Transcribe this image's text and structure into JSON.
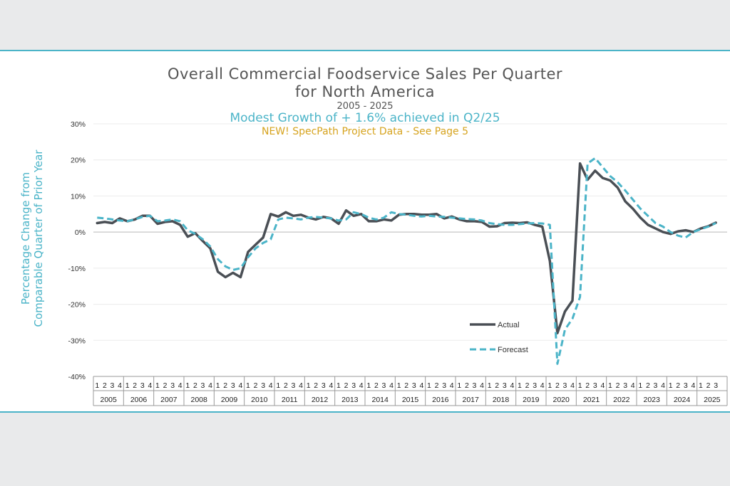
{
  "chart_data": {
    "type": "line",
    "title": "Overall Commercial Foodservice Sales Per Quarter",
    "title_line2": "for North America",
    "subtitle": "2005 - 2025",
    "headline": "Modest Growth of + 1.6% achieved in Q2/25",
    "note": "NEW! SpecPath Project Data - See Page 5",
    "ylabel_line1": "Percentage Change from",
    "ylabel_line2": "Comparable Quarter of Prior Year",
    "ylim": [
      -40,
      30
    ],
    "yticks": [
      30,
      20,
      10,
      0,
      -10,
      -20,
      -30,
      -40
    ],
    "ytick_labels": [
      "30%",
      "20%",
      "10%",
      "0%",
      "-10%",
      "-20%",
      "-30%",
      "-40%"
    ],
    "years": [
      "2005",
      "2006",
      "2007",
      "2008",
      "2009",
      "2010",
      "2011",
      "2012",
      "2013",
      "2014",
      "2015",
      "2016",
      "2017",
      "2018",
      "2019",
      "2020",
      "2021",
      "2022",
      "2023",
      "2024",
      "2025"
    ],
    "quarter_labels": [
      "1",
      "2",
      "3",
      "4"
    ],
    "series": [
      {
        "name": "Actual",
        "color": "#4a4f55",
        "dash": false,
        "values": [
          2.5,
          2.8,
          2.5,
          3.8,
          3.0,
          3.5,
          4.5,
          4.5,
          2.3,
          2.8,
          3.0,
          2.0,
          -1.3,
          -0.3,
          -2.5,
          -4.5,
          -11,
          -12.5,
          -11.3,
          -12.5,
          -5.5,
          -3.5,
          -1.5,
          5.0,
          4.3,
          5.5,
          4.5,
          4.8,
          4.0,
          3.5,
          4.2,
          3.8,
          2.3,
          6.0,
          4.5,
          5.0,
          3.0,
          3.0,
          3.5,
          3.2,
          4.8,
          5.0,
          5.0,
          4.8,
          4.8,
          5.0,
          3.8,
          4.3,
          3.5,
          3.0,
          3.0,
          2.8,
          1.5,
          1.6,
          2.5,
          2.6,
          2.5,
          2.7,
          2.0,
          1.5,
          -8,
          -28,
          -22,
          -19,
          19,
          14.5,
          17,
          15,
          14.3,
          12.3,
          8.5,
          6.5,
          4.0,
          2.0,
          1.0,
          0.0,
          -0.5,
          0.2,
          0.5,
          0.0,
          1.0,
          1.6,
          2.6
        ]
      },
      {
        "name": "Forecast",
        "color": "#4bb4c8",
        "dash": true,
        "values": [
          4.0,
          3.8,
          3.5,
          3.2,
          3.0,
          3.5,
          4.2,
          4.5,
          3.0,
          3.2,
          3.5,
          3.0,
          0.5,
          -0.5,
          -2.0,
          -4.0,
          -7.5,
          -9.5,
          -10.5,
          -10.0,
          -7.0,
          -4.5,
          -3.0,
          -2.0,
          3.5,
          4.0,
          3.8,
          3.5,
          4.0,
          4.2,
          4.0,
          3.8,
          3.2,
          3.5,
          5.5,
          5.0,
          4.0,
          3.5,
          4.0,
          5.5,
          5.0,
          4.8,
          4.5,
          4.3,
          4.5,
          4.3,
          4.2,
          4.0,
          3.8,
          3.6,
          3.5,
          3.2,
          2.5,
          2.2,
          2.0,
          2.0,
          2.2,
          2.4,
          2.5,
          2.4,
          2.0,
          -36.5,
          -27,
          -24,
          -18,
          19,
          20.5,
          18,
          15.5,
          13.8,
          11.5,
          9.0,
          6.5,
          4.5,
          2.5,
          1.5,
          0.0,
          -1.0,
          -1.5,
          0.0,
          0.8,
          1.5,
          2.5
        ]
      }
    ],
    "legend": {
      "placement": "bottom-right"
    }
  }
}
